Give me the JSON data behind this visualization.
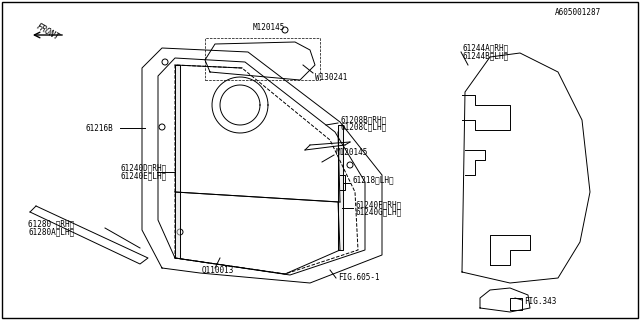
{
  "bg_color": "#ffffff",
  "border_color": "#000000",
  "line_color": "#000000",
  "part_color": "#000000",
  "labels": {
    "61280_rh": "61280 〈RH〉",
    "61280a_lh": "61280A〈LH〉",
    "Q110013": "Q110013",
    "FIG605": "FIG.605-1",
    "61240F_rh": "61240F〈RH〉",
    "61240G_lh": "61240G〈LH〉",
    "61240D_rh": "61240D〈RH〉",
    "61240E_lh": "61240E〈LH〉",
    "61218_lh": "61218〈LH〉",
    "M120145_top": "M120145",
    "61208B_rh": "61208B〈RH〉",
    "61208C_lh": "61208C〈LH〉",
    "W130241": "W130241",
    "61216B": "61216B",
    "M120145_bot": "M120145",
    "FIG343": "FIG.343",
    "61244A_rh": "61244A〈RH〉",
    "61244B_lh": "61244B〈LH〉",
    "FRONT": "←FRONT",
    "part_no": "A605001287"
  }
}
